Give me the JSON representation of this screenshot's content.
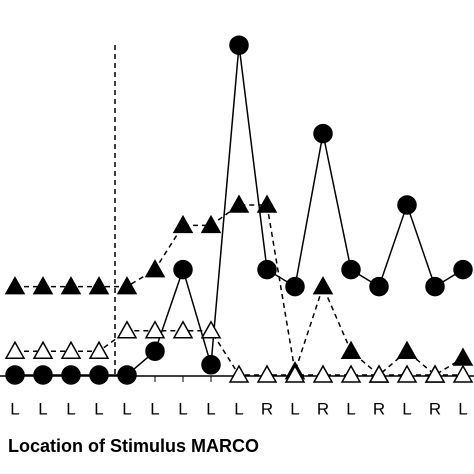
{
  "chart_data": {
    "type": "line",
    "x_label": "Location of Stimulus MARCO",
    "categories": [
      "L",
      "L",
      "L",
      "L",
      "L",
      "L",
      "L",
      "L",
      "L",
      "R",
      "L",
      "R",
      "L",
      "R",
      "L",
      "R",
      "L"
    ],
    "ylim": [
      0,
      100
    ],
    "series": [
      {
        "color": "#000000",
        "marker": "circle",
        "dash": false,
        "values": [
          0,
          0,
          0,
          0,
          0,
          7,
          31,
          3,
          97,
          31,
          26,
          71,
          31,
          26,
          50,
          26,
          31
        ]
      },
      {
        "color": "#000000",
        "marker": "triangle",
        "dash": true,
        "values": [
          26,
          26,
          26,
          26,
          26,
          31,
          44,
          44,
          50,
          50,
          1,
          26,
          7,
          0,
          7,
          0,
          5
        ]
      },
      {
        "color": "#ffffff",
        "marker": "triangle",
        "dash": true,
        "values": [
          7,
          7,
          7,
          7,
          13,
          13,
          13,
          13,
          0,
          0,
          0,
          0,
          0,
          0,
          0,
          0,
          0
        ]
      }
    ]
  }
}
